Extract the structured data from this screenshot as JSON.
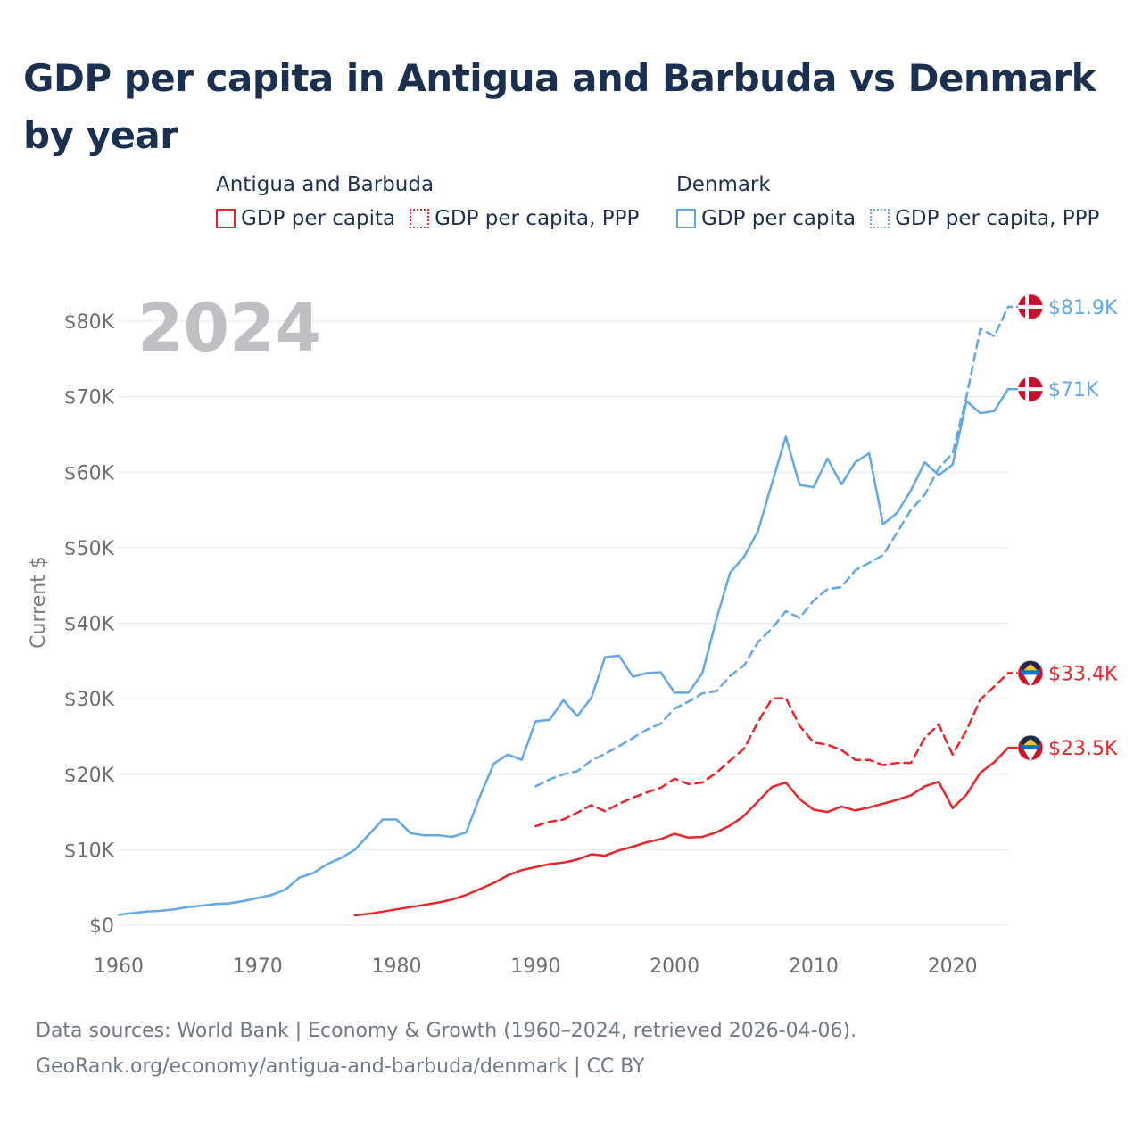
{
  "title": "GDP per capita in Antigua and Barbuda vs Denmark by year",
  "legend": {
    "groups": [
      {
        "name": "Antigua and Barbuda",
        "items": [
          "GDP per capita",
          "GDP per capita, PPP"
        ]
      },
      {
        "name": "Denmark",
        "items": [
          "GDP per capita",
          "GDP per capita, PPP"
        ]
      }
    ]
  },
  "footer": {
    "source": "Data sources: World Bank | Economy & Growth (1960–2024, retrieved 2026-04-06).",
    "link": "GeoRank.org/economy/antigua-and-barbuda/denmark | CC BY"
  },
  "colors": {
    "antigua": "#e8262b",
    "denmark": "#62a8e6"
  },
  "chart_data": {
    "type": "line",
    "year_label": "2024",
    "ylabel": "Current $",
    "xlim": [
      1960,
      2024
    ],
    "ylim": [
      0,
      80000
    ],
    "x_ticks": [
      1960,
      1970,
      1980,
      1990,
      2000,
      2010,
      2020
    ],
    "y_ticks": [
      0,
      10000,
      20000,
      30000,
      40000,
      50000,
      60000,
      70000,
      80000
    ],
    "y_tick_labels": [
      "$0",
      "$10K",
      "$20K",
      "$30K",
      "$40K",
      "$50K",
      "$60K",
      "$70K",
      "$80K"
    ],
    "series": [
      {
        "name": "Denmark GDP per capita",
        "country": "Denmark",
        "color_key": "denmark",
        "dashed": false,
        "end_label": "$71K",
        "x": [
          1960,
          1961,
          1962,
          1963,
          1964,
          1965,
          1966,
          1967,
          1968,
          1969,
          1970,
          1971,
          1972,
          1973,
          1974,
          1975,
          1976,
          1977,
          1978,
          1979,
          1980,
          1981,
          1982,
          1983,
          1984,
          1985,
          1986,
          1987,
          1988,
          1989,
          1990,
          1991,
          1992,
          1993,
          1994,
          1995,
          1996,
          1997,
          1998,
          1999,
          2000,
          2001,
          2002,
          2003,
          2004,
          2005,
          2006,
          2007,
          2008,
          2009,
          2010,
          2011,
          2012,
          2013,
          2014,
          2015,
          2016,
          2017,
          2018,
          2019,
          2020,
          2021,
          2022,
          2023,
          2024
        ],
        "values": [
          1400,
          1600,
          1800,
          1900,
          2100,
          2400,
          2600,
          2800,
          2900,
          3200,
          3600,
          4000,
          4700,
          6300,
          6900,
          8100,
          8900,
          10000,
          12000,
          14000,
          14000,
          12200,
          11900,
          11900,
          11700,
          12300,
          17100,
          21400,
          22600,
          21900,
          27000,
          27200,
          29800,
          27700,
          30100,
          35500,
          35700,
          32900,
          33400,
          33500,
          30800,
          30800,
          33400,
          40500,
          46700,
          48800,
          52200,
          58500,
          64700,
          58300,
          58000,
          61800,
          58400,
          61300,
          62500,
          53100,
          54600,
          57600,
          61300,
          59600,
          61000,
          69400,
          67800,
          68100,
          71000
        ]
      },
      {
        "name": "Denmark GDP per capita, PPP",
        "country": "Denmark",
        "color_key": "denmark",
        "dashed": true,
        "end_label": "$81.9K",
        "x": [
          1990,
          1991,
          1992,
          1993,
          1994,
          1995,
          1996,
          1997,
          1998,
          1999,
          2000,
          2001,
          2002,
          2003,
          2004,
          2005,
          2006,
          2007,
          2008,
          2009,
          2010,
          2011,
          2012,
          2013,
          2014,
          2015,
          2016,
          2017,
          2018,
          2019,
          2020,
          2021,
          2022,
          2023,
          2024
        ],
        "values": [
          18400,
          19300,
          20000,
          20400,
          21800,
          22700,
          23700,
          24800,
          25900,
          26700,
          28700,
          29600,
          30700,
          31000,
          33000,
          34400,
          37500,
          39300,
          41600,
          40700,
          43000,
          44500,
          44800,
          47000,
          48000,
          49000,
          52000,
          55000,
          57000,
          60500,
          62500,
          70000,
          79000,
          78000,
          81900
        ]
      },
      {
        "name": "Antigua and Barbuda GDP per capita",
        "country": "Antigua and Barbuda",
        "color_key": "antigua",
        "dashed": false,
        "end_label": "$23.5K",
        "x": [
          1977,
          1978,
          1979,
          1980,
          1981,
          1982,
          1983,
          1984,
          1985,
          1986,
          1987,
          1988,
          1989,
          1990,
          1991,
          1992,
          1993,
          1994,
          1995,
          1996,
          1997,
          1998,
          1999,
          2000,
          2001,
          2002,
          2003,
          2004,
          2005,
          2006,
          2007,
          2008,
          2009,
          2010,
          2011,
          2012,
          2013,
          2014,
          2015,
          2016,
          2017,
          2018,
          2019,
          2020,
          2021,
          2022,
          2023,
          2024
        ],
        "values": [
          1300,
          1500,
          1800,
          2100,
          2400,
          2700,
          3000,
          3400,
          4000,
          4800,
          5600,
          6600,
          7300,
          7700,
          8100,
          8300,
          8700,
          9400,
          9200,
          9900,
          10400,
          11000,
          11400,
          12100,
          11600,
          11700,
          12300,
          13200,
          14500,
          16400,
          18300,
          18900,
          16700,
          15300,
          15000,
          15700,
          15200,
          15600,
          16100,
          16600,
          17200,
          18400,
          19000,
          15500,
          17300,
          20200,
          21600,
          23500
        ]
      },
      {
        "name": "Antigua and Barbuda GDP per capita, PPP",
        "country": "Antigua and Barbuda",
        "color_key": "antigua",
        "dashed": true,
        "end_label": "$33.4K",
        "x": [
          1990,
          1991,
          1992,
          1993,
          1994,
          1995,
          1996,
          1997,
          1998,
          1999,
          2000,
          2001,
          2002,
          2003,
          2004,
          2005,
          2006,
          2007,
          2008,
          2009,
          2010,
          2011,
          2012,
          2013,
          2014,
          2015,
          2016,
          2017,
          2018,
          2019,
          2020,
          2021,
          2022,
          2023,
          2024
        ],
        "values": [
          13100,
          13700,
          14000,
          14900,
          15900,
          15100,
          16100,
          16900,
          17600,
          18200,
          19400,
          18700,
          18900,
          20200,
          21800,
          23400,
          26900,
          30000,
          30100,
          26400,
          24200,
          23900,
          23200,
          21900,
          21900,
          21200,
          21500,
          21500,
          24800,
          26600,
          22600,
          25800,
          29900,
          31600,
          33400
        ]
      }
    ]
  }
}
